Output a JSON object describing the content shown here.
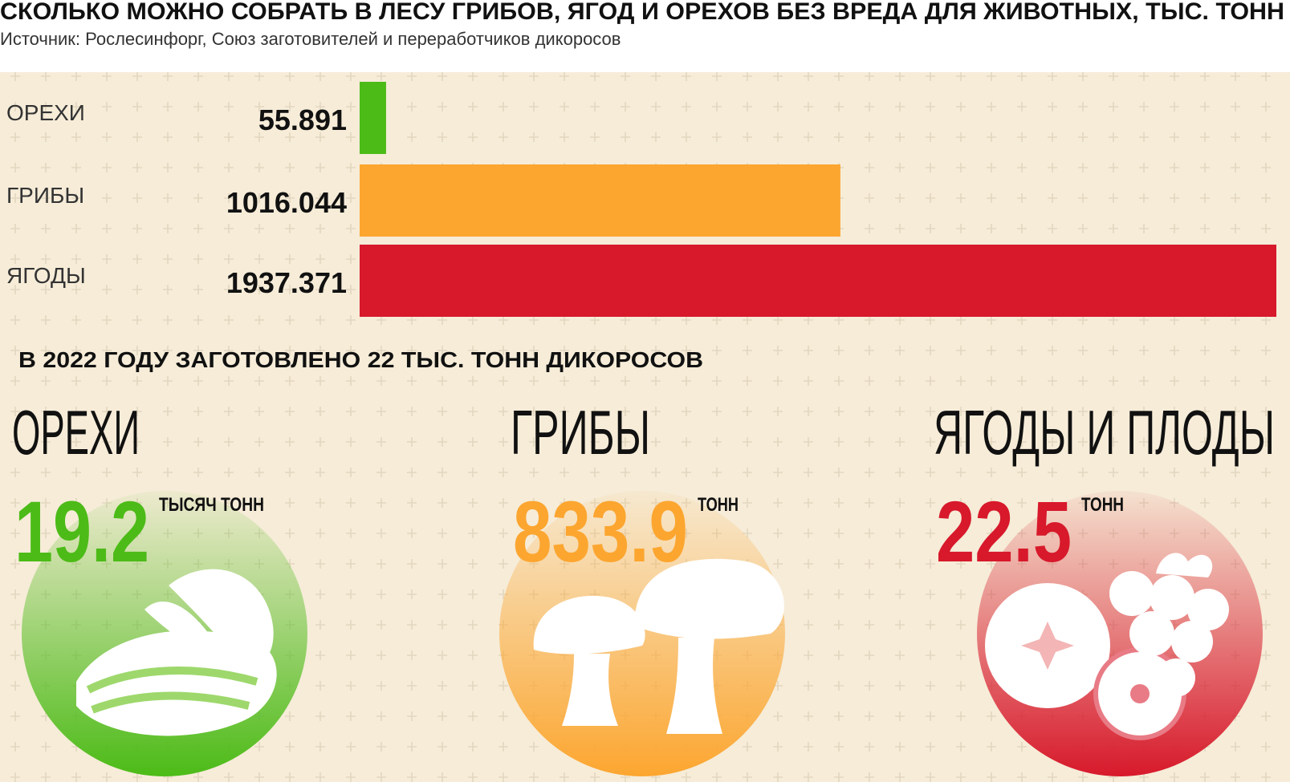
{
  "chart_data": {
    "type": "bar",
    "orientation": "horizontal",
    "title": "СКОЛЬКО МОЖНО СОБРАТЬ В ЛЕСУ ГРИБОВ, ЯГОД И ОРЕХОВ БЕЗ ВРЕДА ДЛЯ ЖИВОТНЫХ, ТЫС. ТОНН",
    "subtitle": "Источник: Рослесинфорг, Союз заготовителей и переработчиков дикоросов",
    "categories": [
      "ОРЕХИ",
      "ГРИБЫ",
      "ЯГОДЫ"
    ],
    "values": [
      55.891,
      1016.044,
      1937.371
    ],
    "colors": [
      "#4cbb17",
      "#fca630",
      "#d7192b"
    ]
  },
  "harvest": {
    "title": "В 2022 ГОДУ ЗАГОТОВЛЕНО 22 ТЫС. ТОНН ДИКОРОСОВ",
    "items": [
      {
        "name": "ОРЕХИ",
        "value": 19.2,
        "unit": "ТЫСЯЧ ТОНН",
        "color": "#4cbb17"
      },
      {
        "name": "ГРИБЫ",
        "value": 833.9,
        "unit": "ТОНН",
        "color": "#fca630"
      },
      {
        "name": "ЯГОДЫ И ПЛОДЫ",
        "value": 22.5,
        "unit": "ТОНН",
        "color": "#d7192b"
      }
    ]
  }
}
